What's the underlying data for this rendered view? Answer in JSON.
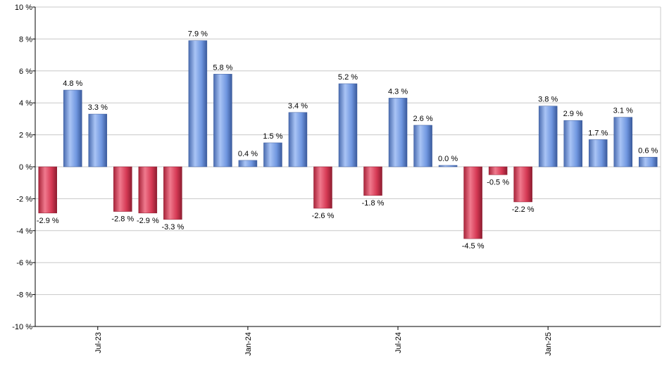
{
  "chart_data": {
    "type": "bar",
    "title": "",
    "xlabel": "",
    "ylabel": "",
    "ylim": [
      -10,
      10
    ],
    "grid": true,
    "legend": "none",
    "y_ticks": [
      {
        "value": 10,
        "label": "10 %"
      },
      {
        "value": 8,
        "label": "8 %"
      },
      {
        "value": 6,
        "label": "6 %"
      },
      {
        "value": 4,
        "label": "4 %"
      },
      {
        "value": 2,
        "label": "2 %"
      },
      {
        "value": 0,
        "label": "0 %"
      },
      {
        "value": -2,
        "label": "-2 %"
      },
      {
        "value": -4,
        "label": "-4 %"
      },
      {
        "value": -6,
        "label": "-6 %"
      },
      {
        "value": -8,
        "label": "-8 %"
      },
      {
        "value": -10,
        "label": "-10 %"
      }
    ],
    "x_ticks": [
      {
        "index": 2,
        "label": "Jul-23"
      },
      {
        "index": 8,
        "label": "Jan-24"
      },
      {
        "index": 14,
        "label": "Jul-24"
      },
      {
        "index": 20,
        "label": "Jan-25"
      }
    ],
    "values": [
      -2.9,
      4.8,
      3.3,
      -2.8,
      -2.9,
      -3.3,
      7.9,
      5.8,
      0.4,
      1.5,
      3.4,
      -2.6,
      5.2,
      -1.8,
      4.3,
      2.6,
      0.0,
      -4.5,
      -0.5,
      -2.2,
      3.8,
      2.9,
      1.7,
      3.1,
      0.6
    ],
    "data_labels": [
      "-2.9 %",
      "4.8 %",
      "3.3 %",
      "-2.8 %",
      "-2.9 %",
      "-3.3 %",
      "7.9 %",
      "5.8 %",
      "0.4 %",
      "1.5 %",
      "3.4 %",
      "-2.6 %",
      "5.2 %",
      "-1.8 %",
      "4.3 %",
      "2.6 %",
      "0.0 %",
      "-4.5 %",
      "-0.5 %",
      "-2.2 %",
      "3.8 %",
      "2.9 %",
      "1.7 %",
      "3.1 %",
      "0.6 %"
    ],
    "colors": {
      "positive_light": "#a9c4f5",
      "positive_mid": "#7097e0",
      "positive_dark": "#3a5a9c",
      "negative_light": "#f07a8e",
      "negative_mid": "#d63a55",
      "negative_dark": "#8e1c30",
      "grid": "#c8c8c8",
      "axis": "#000000"
    }
  }
}
